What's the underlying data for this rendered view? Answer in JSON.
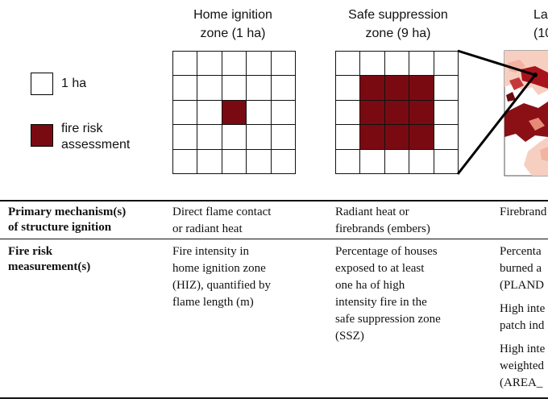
{
  "legend": {
    "cell_label": "1 ha",
    "risk_label_line1": "fire risk",
    "risk_label_line2": "assessment"
  },
  "zones": [
    {
      "title_line1": "Home ignition",
      "title_line2": "zone (1 ha)"
    },
    {
      "title_line1": "Safe suppression",
      "title_line2": "zone (9 ha)"
    },
    {
      "title_line1": "La",
      "title_line2": "(10"
    }
  ],
  "colors": {
    "fire_risk_fill": "#7a0a12",
    "landscape_light": "#f7cfc0",
    "landscape_dark": "#8a1015"
  },
  "table": {
    "rows": [
      {
        "header_line1": "Primary mechanism(s)",
        "header_line2": "of structure ignition",
        "col1": [
          "Direct flame contact",
          "or radiant heat"
        ],
        "col2": [
          "Radiant heat or",
          "firebrands (embers)"
        ],
        "col3": [
          "Firebrand"
        ]
      },
      {
        "header_line1": "Fire risk",
        "header_line2": "measurement(s)",
        "col1": [
          "Fire intensity in",
          "home ignition zone",
          "(HIZ), quantified by",
          "flame length (m)"
        ],
        "col2": [
          "Percentage of houses",
          "exposed to at least",
          "one ha of high",
          "intensity fire in the",
          "safe suppression zone",
          "(SSZ)"
        ],
        "col3_items": [
          [
            "Percenta",
            "burned a",
            "(PLAND"
          ],
          [
            "High inte",
            "patch ind"
          ],
          [
            "High inte",
            "weighted",
            "(AREA_"
          ]
        ]
      }
    ]
  }
}
